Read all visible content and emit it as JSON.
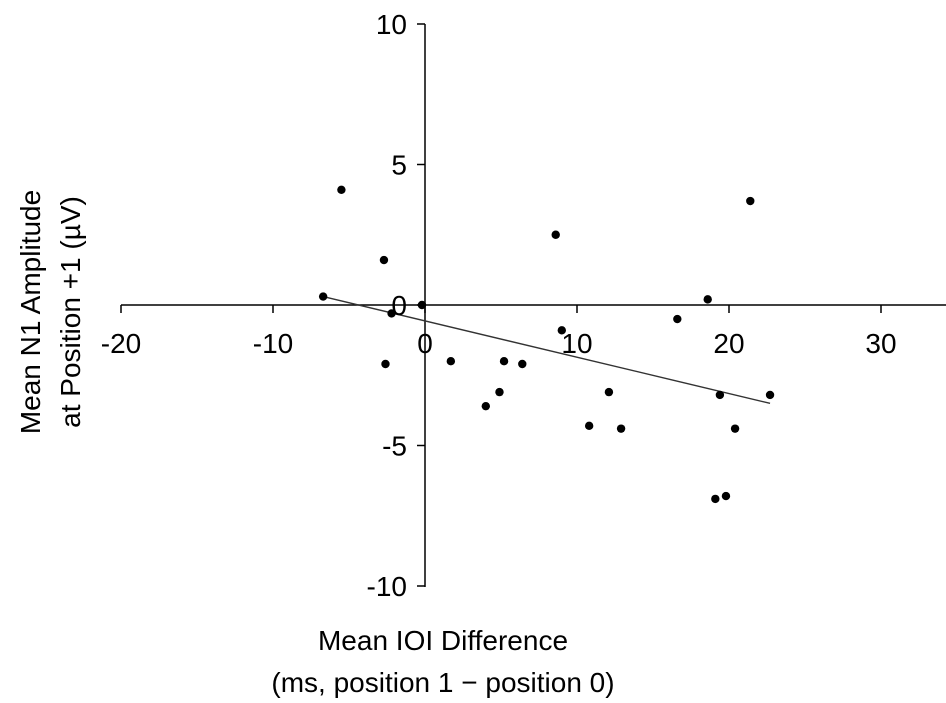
{
  "chart_data": {
    "type": "scatter",
    "title": "",
    "xlabel": [
      "Mean IOI Difference",
      "(ms, position 1 − position 0)"
    ],
    "ylabel": [
      "Mean N1 Amplitude",
      "at Position +1 (µV)"
    ],
    "xlim": [
      -20,
      34
    ],
    "ylim": [
      -10,
      10
    ],
    "x_ticks": [
      -20,
      -10,
      0,
      10,
      20,
      30
    ],
    "y_ticks": [
      -10,
      -5,
      0,
      5,
      10
    ],
    "grid": false,
    "legend": "none",
    "colors": {
      "points": "#000000",
      "axes": "#000000",
      "fit_line": "#333333"
    },
    "series": [
      {
        "points": [
          {
            "x": -6.7,
            "y": 0.3
          },
          {
            "x": -5.5,
            "y": 4.1
          },
          {
            "x": -2.7,
            "y": 1.6
          },
          {
            "x": -2.2,
            "y": -0.3
          },
          {
            "x": -2.6,
            "y": -2.1
          },
          {
            "x": -0.2,
            "y": 0.0
          },
          {
            "x": 1.7,
            "y": -2.0
          },
          {
            "x": 4.0,
            "y": -3.6
          },
          {
            "x": 4.9,
            "y": -3.1
          },
          {
            "x": 5.2,
            "y": -2.0
          },
          {
            "x": 6.4,
            "y": -2.1
          },
          {
            "x": 8.6,
            "y": 2.5
          },
          {
            "x": 9.0,
            "y": -0.9
          },
          {
            "x": 10.8,
            "y": -4.3
          },
          {
            "x": 12.1,
            "y": -3.1
          },
          {
            "x": 12.9,
            "y": -4.4
          },
          {
            "x": 16.6,
            "y": -0.5
          },
          {
            "x": 18.6,
            "y": 0.2
          },
          {
            "x": 19.1,
            "y": -6.9
          },
          {
            "x": 19.4,
            "y": -3.2
          },
          {
            "x": 19.8,
            "y": -6.8
          },
          {
            "x": 20.4,
            "y": -4.4
          },
          {
            "x": 21.4,
            "y": 3.7
          },
          {
            "x": 22.7,
            "y": -3.2
          }
        ]
      }
    ],
    "fit_line": {
      "x": [
        -6.7,
        22.7
      ],
      "y": [
        0.3,
        -3.5
      ]
    }
  }
}
